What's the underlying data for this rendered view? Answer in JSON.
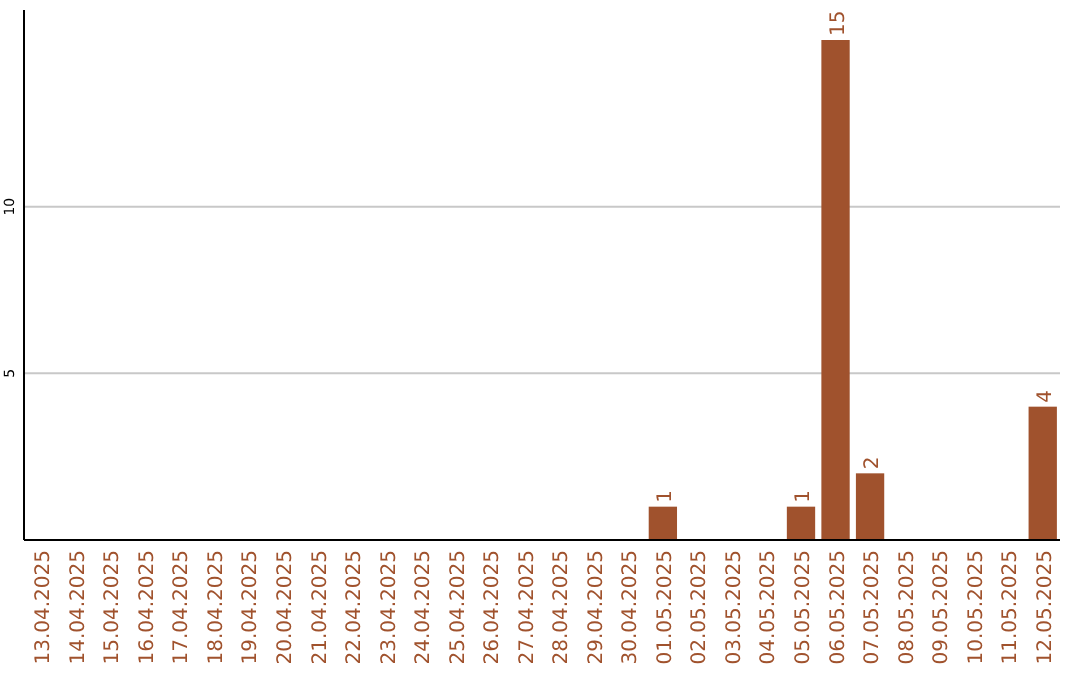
{
  "chart_data": {
    "type": "bar",
    "categories": [
      "13.04.2025",
      "14.04.2025",
      "15.04.2025",
      "16.04.2025",
      "17.04.2025",
      "18.04.2025",
      "19.04.2025",
      "20.04.2025",
      "21.04.2025",
      "22.04.2025",
      "23.04.2025",
      "24.04.2025",
      "25.04.2025",
      "26.04.2025",
      "27.04.2025",
      "28.04.2025",
      "29.04.2025",
      "30.04.2025",
      "01.05.2025",
      "02.05.2025",
      "03.05.2025",
      "04.05.2025",
      "05.05.2025",
      "06.05.2025",
      "07.05.2025",
      "08.05.2025",
      "09.05.2025",
      "10.05.2025",
      "11.05.2025",
      "12.05.2025"
    ],
    "values": [
      0,
      0,
      0,
      0,
      0,
      0,
      0,
      0,
      0,
      0,
      0,
      0,
      0,
      0,
      0,
      0,
      0,
      0,
      1,
      0,
      0,
      0,
      1,
      15,
      2,
      0,
      0,
      0,
      0,
      4
    ],
    "value_labels": [
      null,
      null,
      null,
      null,
      null,
      null,
      null,
      null,
      null,
      null,
      null,
      null,
      null,
      null,
      null,
      null,
      null,
      null,
      "1",
      null,
      null,
      null,
      "1",
      "15",
      "2",
      null,
      null,
      null,
      null,
      "4"
    ],
    "color": "#a0522d",
    "ylim": [
      0,
      15.9
    ],
    "yticks": [
      5,
      10
    ],
    "grid": "y"
  }
}
